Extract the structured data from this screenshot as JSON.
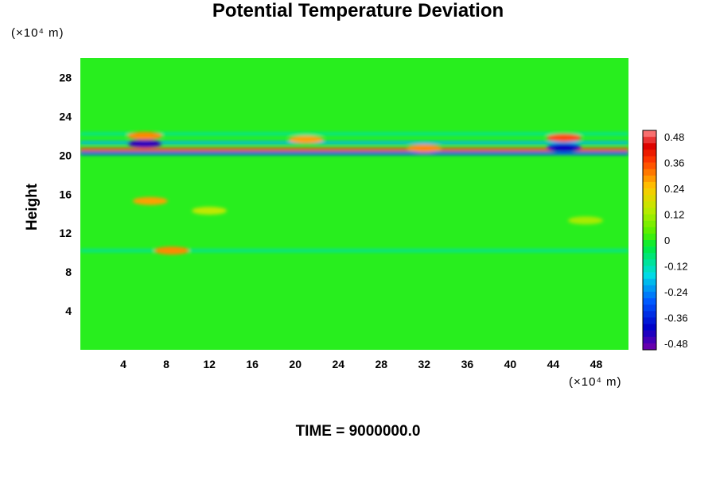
{
  "chart_data": {
    "type": "heatmap",
    "title": "Potential Temperature Deviation",
    "ylabel": "Height",
    "y_unit": "(×10⁴ m)",
    "x_unit": "(×10⁴ m)",
    "footer": "TIME = 9000000.0",
    "xlim": [
      0,
      51
    ],
    "ylim": [
      0,
      30
    ],
    "x_ticks": [
      "4",
      "8",
      "12",
      "16",
      "20",
      "24",
      "28",
      "32",
      "36",
      "40",
      "44",
      "48"
    ],
    "y_ticks": [
      "4",
      "8",
      "12",
      "16",
      "20",
      "24",
      "28"
    ],
    "colorbar": {
      "ticks": [
        "0.48",
        "0.36",
        "0.24",
        "0.12",
        "0",
        "-0.12",
        "-0.24",
        "-0.36",
        "-0.48"
      ],
      "min": -0.51,
      "max": 0.51,
      "levels": 34
    },
    "background_value": 0,
    "features": [
      {
        "kind": "band",
        "y": 20.2,
        "x0": 0,
        "x1": 51,
        "value": -0.3
      },
      {
        "kind": "band",
        "y": 20.6,
        "x0": 0,
        "x1": 51,
        "value": 0.36
      },
      {
        "kind": "band",
        "y": 21.3,
        "x0": 0,
        "x1": 51,
        "value": -0.2
      },
      {
        "kind": "band",
        "y": 22.2,
        "x0": 0,
        "x1": 51,
        "value": -0.1
      },
      {
        "kind": "band",
        "y": 10.2,
        "x0": 0,
        "x1": 51,
        "value": -0.1
      },
      {
        "kind": "blob",
        "x": 6,
        "y": 21.2,
        "value": -0.45
      },
      {
        "kind": "blob",
        "x": 6,
        "y": 22.0,
        "value": 0.3
      },
      {
        "kind": "blob",
        "x": 45,
        "y": 20.8,
        "value": -0.42
      },
      {
        "kind": "blob",
        "x": 45,
        "y": 21.8,
        "value": 0.36
      },
      {
        "kind": "blob",
        "x": 32,
        "y": 20.7,
        "value": 0.3
      },
      {
        "kind": "blob",
        "x": 21,
        "y": 21.6,
        "value": 0.28
      },
      {
        "kind": "blob",
        "x": 6.5,
        "y": 15.3,
        "value": 0.28
      },
      {
        "kind": "blob",
        "x": 12,
        "y": 14.3,
        "value": 0.15
      },
      {
        "kind": "blob",
        "x": 8.5,
        "y": 10.2,
        "value": 0.3
      },
      {
        "kind": "blob",
        "x": 47,
        "y": 13.3,
        "value": 0.12
      }
    ]
  }
}
